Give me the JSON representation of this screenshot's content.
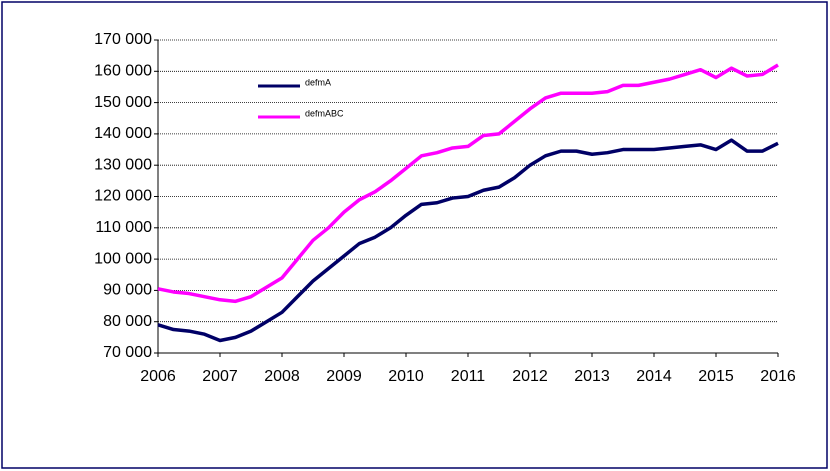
{
  "chart_data": {
    "type": "line",
    "x": [
      2006,
      2006.25,
      2006.5,
      2006.75,
      2007,
      2007.25,
      2007.5,
      2007.75,
      2008,
      2008.25,
      2008.5,
      2008.75,
      2009,
      2009.25,
      2009.5,
      2009.75,
      2010,
      2010.25,
      2010.5,
      2010.75,
      2011,
      2011.25,
      2011.5,
      2011.75,
      2012,
      2012.25,
      2012.5,
      2012.75,
      2013,
      2013.25,
      2013.5,
      2013.75,
      2014,
      2014.25,
      2014.5,
      2014.75,
      2015,
      2015.25,
      2015.5,
      2015.75,
      2016
    ],
    "series": [
      {
        "name": "defmA",
        "color": "#000066",
        "values": [
          79000,
          77500,
          77000,
          76000,
          74000,
          75000,
          77000,
          80000,
          83000,
          88000,
          93000,
          97000,
          101000,
          105000,
          107000,
          110000,
          114000,
          117500,
          118000,
          119500,
          120000,
          122000,
          123000,
          126000,
          130000,
          133000,
          134500,
          134500,
          133500,
          134000,
          135000,
          135000,
          135000,
          135500,
          136000,
          136500,
          135000,
          138000,
          134500,
          134500,
          137000
        ]
      },
      {
        "name": "defmABC",
        "color": "#ff00ff",
        "values": [
          90500,
          89500,
          89000,
          88000,
          87000,
          86500,
          88000,
          91000,
          94000,
          100000,
          106000,
          110000,
          115000,
          119000,
          121500,
          125000,
          129000,
          133000,
          134000,
          135500,
          136000,
          139500,
          140000,
          144000,
          148000,
          151500,
          153000,
          153000,
          153000,
          153500,
          155500,
          155500,
          156500,
          157500,
          159000,
          160500,
          158000,
          161000,
          158500,
          159000,
          162000
        ]
      }
    ],
    "xlim": [
      2006,
      2016
    ],
    "xticks": [
      2006,
      2007,
      2008,
      2009,
      2010,
      2011,
      2012,
      2013,
      2014,
      2015,
      2016
    ],
    "ylim": [
      70000,
      170000
    ],
    "yticks": [
      {
        "value": 70000,
        "label": "70 000"
      },
      {
        "value": 80000,
        "label": "80 000"
      },
      {
        "value": 90000,
        "label": "90 000"
      },
      {
        "value": 100000,
        "label": "100 000"
      },
      {
        "value": 110000,
        "label": "110 000"
      },
      {
        "value": 120000,
        "label": "120 000"
      },
      {
        "value": 130000,
        "label": "130 000"
      },
      {
        "value": 140000,
        "label": "140 000"
      },
      {
        "value": 150000,
        "label": "150 000"
      },
      {
        "value": 160000,
        "label": "160 000"
      },
      {
        "value": 170000,
        "label": "170 000"
      }
    ],
    "grid": true
  }
}
